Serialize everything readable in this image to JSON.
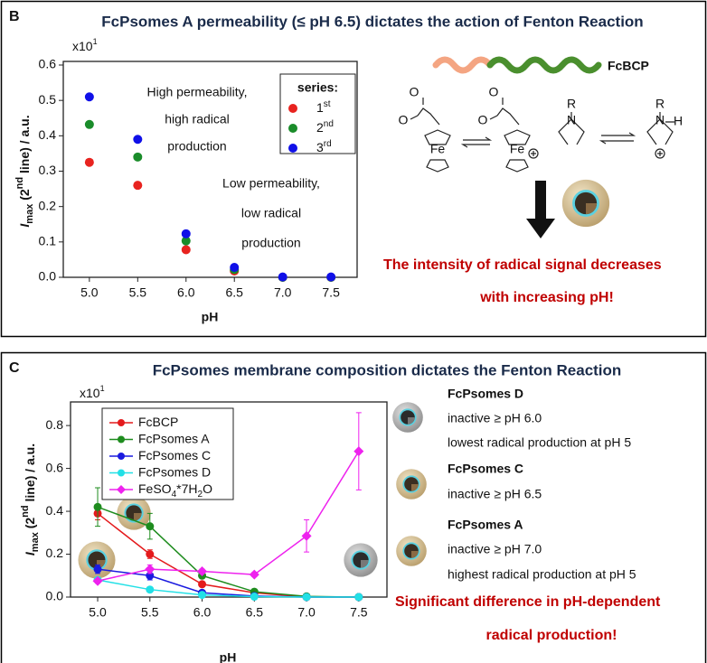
{
  "chart_data": [
    {
      "type": "scatter",
      "panel_label": "B",
      "title": "FcPsomes A permeability (≤ pH 6.5) dictates the action of Fenton Reaction",
      "multiplier": {
        "base": "x10",
        "exponent": "1"
      },
      "y_label": {
        "main": "I",
        "sub": "max",
        "pre": " (2",
        "sup": "nd",
        "post": " line) / a.u."
      },
      "x_label": "pH",
      "x": [
        5,
        5.5,
        6,
        6.5,
        7,
        7.5
      ],
      "xlim": [
        4.73,
        7.77
      ],
      "xticks": [
        {
          "value": 5,
          "label": "5.0"
        },
        {
          "value": 5.5,
          "label": "5.5"
        },
        {
          "value": 6,
          "label": "6.0"
        },
        {
          "value": 6.5,
          "label": "6.5"
        },
        {
          "value": 7,
          "label": "7.0"
        },
        {
          "value": 7.5,
          "label": "7.5"
        }
      ],
      "ylim": [
        0,
        0.6
      ],
      "yticks": [
        {
          "value": 0,
          "label": "0.0"
        },
        0.1,
        0.2,
        0.3,
        0.4,
        0.5,
        0.6
      ],
      "legend": "upper right",
      "legend_title": "series:",
      "series": [
        {
          "name": "1st",
          "color": "#e8231f",
          "values": [
            0.325,
            0.26,
            0.078,
            0.018,
            0.0,
            0.0
          ]
        },
        {
          "name": "2nd",
          "color": "#1a8c2a",
          "values": [
            0.432,
            0.34,
            0.103,
            0.022,
            0.0,
            0.0
          ]
        },
        {
          "name": "3rd",
          "color": "#1010e8",
          "values": [
            0.51,
            0.39,
            0.123,
            0.028,
            0.001,
            0.001
          ]
        }
      ],
      "annotations": [
        "High permeability,",
        "high radical",
        "production",
        "Low permeability,",
        "low radical",
        "production"
      ]
    },
    {
      "type": "line",
      "panel_label": "C",
      "title": "FcPsomes membrane composition dictates the Fenton Reaction",
      "multiplier": {
        "base": "x10",
        "exponent": "1"
      },
      "y_label": {
        "main": "I",
        "sub": "max",
        "pre": " (2",
        "sup": "nd",
        "post": " line) / a.u."
      },
      "x_label": "pH",
      "x": [
        5,
        5.5,
        6,
        6.5,
        7,
        7.5
      ],
      "xlim": [
        4.74,
        7.77
      ],
      "xticks": [
        {
          "value": 5,
          "label": "5.0"
        },
        {
          "value": 5.5,
          "label": "5.5"
        },
        {
          "value": 6,
          "label": "6.0"
        },
        {
          "value": 6.5,
          "label": "6.5"
        },
        {
          "value": 7,
          "label": "7.0"
        },
        {
          "value": 7.5,
          "label": "7.5"
        }
      ],
      "ylim": [
        0,
        0.91
      ],
      "yticks": [
        {
          "value": 0,
          "label": "0.0"
        },
        0.2,
        0.4,
        0.6,
        0.8
      ],
      "legend": "upper left",
      "series": [
        {
          "name": "FcBCP",
          "color": "#e41a1c",
          "marker": "circle",
          "values": [
            0.39,
            0.2,
            0.06,
            0.02,
            0.0,
            0.0
          ],
          "errors": [
            0.03,
            0.02,
            0.01,
            0.005,
            0,
            0
          ]
        },
        {
          "name": "FcPsomes A",
          "color": "#1e8c1e",
          "marker": "circle",
          "values": [
            0.42,
            0.33,
            0.1,
            0.025,
            0.003,
            0.0
          ],
          "errors": [
            0.09,
            0.06,
            0.01,
            0.005,
            0,
            0
          ]
        },
        {
          "name": "FcPsomes C",
          "color": "#1a1adf",
          "marker": "circle",
          "values": [
            0.13,
            0.1,
            0.02,
            0.005,
            0.0,
            0.0
          ],
          "errors": [
            0.02,
            0.02,
            0.005,
            0,
            0,
            0
          ]
        },
        {
          "name": "FcPsomes D",
          "color": "#22e0e6",
          "marker": "circle",
          "values": [
            0.08,
            0.035,
            0.01,
            0.002,
            0.0,
            0.0
          ],
          "errors": [
            0.01,
            0.005,
            0,
            0,
            0,
            0
          ]
        },
        {
          "name": "FeSO4*7H2O",
          "color": "#ee22ee",
          "marker": "diamond",
          "values": [
            0.075,
            0.13,
            0.12,
            0.105,
            0.285,
            0.68
          ],
          "errors": [
            0.01,
            0.02,
            0.01,
            0.01,
            0.075,
            0.18
          ]
        }
      ]
    }
  ],
  "panel_b": {
    "scheme_label": "FcBCP",
    "atoms": [
      "O",
      "O",
      "Fe",
      "O",
      "O",
      "Fe",
      "R",
      "N",
      "R",
      "N",
      "H"
    ],
    "conclusion": [
      "The intensity of radical signal decreases",
      "with increasing pH!"
    ]
  },
  "panel_c": {
    "notes": [
      {
        "name": "FcPsomes D",
        "lines": [
          "inactive ≥ pH 6.0",
          "lowest radical production at pH 5"
        ]
      },
      {
        "name": "FcPsomes C",
        "lines": [
          "inactive ≥ pH 6.5"
        ]
      },
      {
        "name": "FcPsomes A",
        "lines": [
          "inactive ≥ pH 7.0",
          "highest radical production at pH 5"
        ]
      }
    ],
    "conclusion": [
      "Significant difference in pH-dependent",
      "radical production!"
    ]
  }
}
